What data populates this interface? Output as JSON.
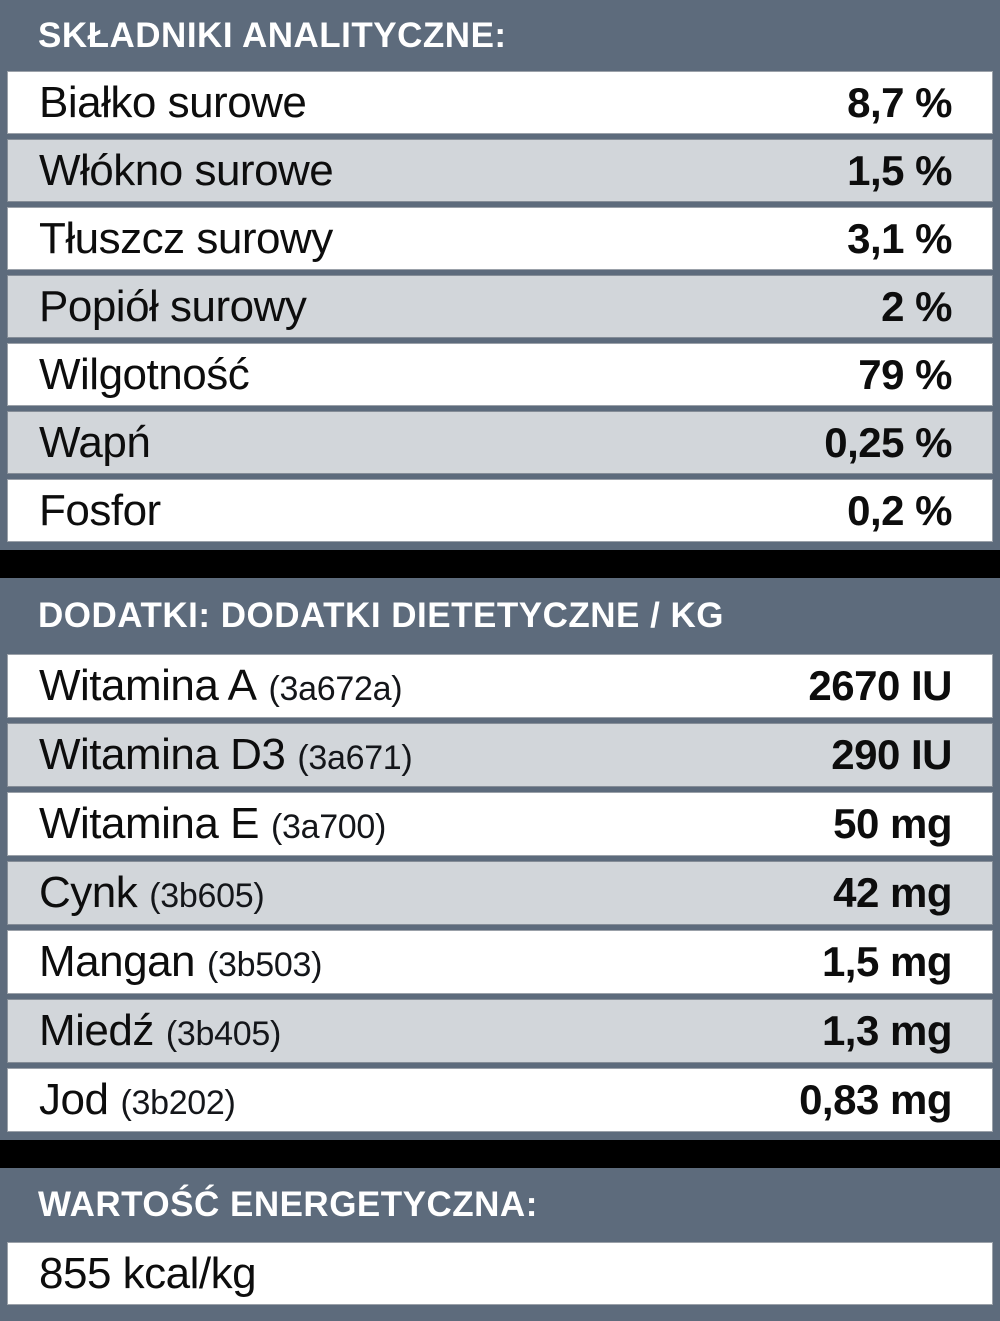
{
  "colors": {
    "background": "#5d6b7c",
    "row_white": "#ffffff",
    "row_gray": "#d2d6da",
    "divider_black": "#000000",
    "header_text": "#ffffff",
    "body_text": "#0d0d0d"
  },
  "sections": [
    {
      "title": "SKŁADNIKI ANALITYCZNE:",
      "rows": [
        {
          "label": "Białko surowe",
          "value": "8,7 %"
        },
        {
          "label": "Włókno surowe",
          "value": "1,5 %"
        },
        {
          "label": "Tłuszcz surowy",
          "value": "3,1 %"
        },
        {
          "label": "Popiół surowy",
          "value": "2 %"
        },
        {
          "label": "Wilgotność",
          "value": "79 %"
        },
        {
          "label": "Wapń",
          "value": "0,25 %"
        },
        {
          "label": "Fosfor",
          "value": "0,2 %"
        }
      ]
    },
    {
      "title": "DODATKI: DODATKI DIETETYCZNE / KG",
      "rows": [
        {
          "label": "Witamina A",
          "code": "(3a672a)",
          "value": "2670 IU"
        },
        {
          "label": "Witamina D3",
          "code": "(3a671)",
          "value": "290 IU"
        },
        {
          "label": "Witamina E",
          "code": "(3a700)",
          "value": "50 mg"
        },
        {
          "label": "Cynk",
          "code": "(3b605)",
          "value": "42 mg"
        },
        {
          "label": "Mangan",
          "code": "(3b503)",
          "value": "1,5 mg"
        },
        {
          "label": "Miedź",
          "code": "(3b405)",
          "value": "1,3 mg"
        },
        {
          "label": "Jod",
          "code": "(3b202)",
          "value": "0,83 mg"
        }
      ]
    },
    {
      "title": "WARTOŚĆ ENERGETYCZNA:",
      "rows": [
        {
          "label": "855 kcal/kg"
        }
      ]
    }
  ]
}
